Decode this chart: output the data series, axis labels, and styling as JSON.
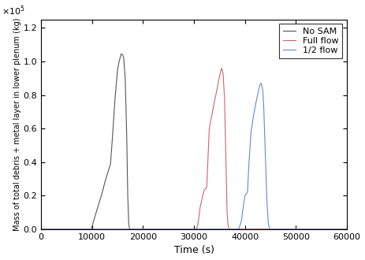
{
  "title": "",
  "xlabel": "Time (s)",
  "ylabel": "Mass of total debris + metal layer in lower plenum (kg)",
  "xlim": [
    0,
    60000
  ],
  "ylim": [
    0,
    125000
  ],
  "yticks": [
    0,
    20000,
    40000,
    60000,
    80000,
    100000,
    120000
  ],
  "xticks": [
    0,
    10000,
    20000,
    30000,
    40000,
    50000,
    60000
  ],
  "legend": [
    "No SAM",
    "Full flow",
    "1/2 flow"
  ],
  "colors": {
    "no_sam": "#555555",
    "full_flow": "#cc6666",
    "half_flow": "#6688cc"
  },
  "no_sam": {
    "x": [
      0,
      9800,
      9900,
      10100,
      10400,
      10700,
      11000,
      11500,
      12000,
      12500,
      13000,
      13200,
      13400,
      13600,
      14000,
      14500,
      15000,
      15300,
      15700,
      16000,
      16200,
      16500,
      16800,
      17000,
      17200,
      17350,
      17500,
      60000
    ],
    "y": [
      0,
      0,
      800,
      3000,
      6000,
      9000,
      12000,
      17000,
      22000,
      28000,
      33000,
      35000,
      37000,
      38500,
      55000,
      78000,
      95000,
      100000,
      104500,
      104000,
      102000,
      90000,
      55000,
      20000,
      3000,
      500,
      0,
      0
    ]
  },
  "full_flow": {
    "x": [
      0,
      30300,
      30500,
      30700,
      31000,
      31200,
      31500,
      31800,
      32000,
      32200,
      32500,
      33000,
      33500,
      34000,
      34500,
      35000,
      35200,
      35400,
      35700,
      36000,
      36200,
      36500,
      36700,
      36900,
      37000,
      60000
    ],
    "y": [
      0,
      0,
      500,
      2000,
      8000,
      13000,
      17000,
      21000,
      23000,
      24000,
      25000,
      60000,
      68000,
      76000,
      83000,
      91000,
      93500,
      96000,
      93000,
      78000,
      50000,
      10000,
      2000,
      200,
      0,
      0
    ]
  },
  "half_flow": {
    "x": [
      0,
      38600,
      38800,
      39000,
      39300,
      39600,
      39900,
      40000,
      40200,
      40500,
      40800,
      41200,
      41700,
      42200,
      42700,
      43000,
      43200,
      43500,
      43700,
      44000,
      44300,
      44600,
      44900,
      45100,
      60000
    ],
    "y": [
      0,
      0,
      500,
      2000,
      5000,
      12000,
      18000,
      20000,
      21000,
      22000,
      40000,
      58000,
      68000,
      76000,
      83000,
      86500,
      87000,
      83000,
      72000,
      45000,
      18000,
      3000,
      200,
      0,
      0
    ]
  }
}
